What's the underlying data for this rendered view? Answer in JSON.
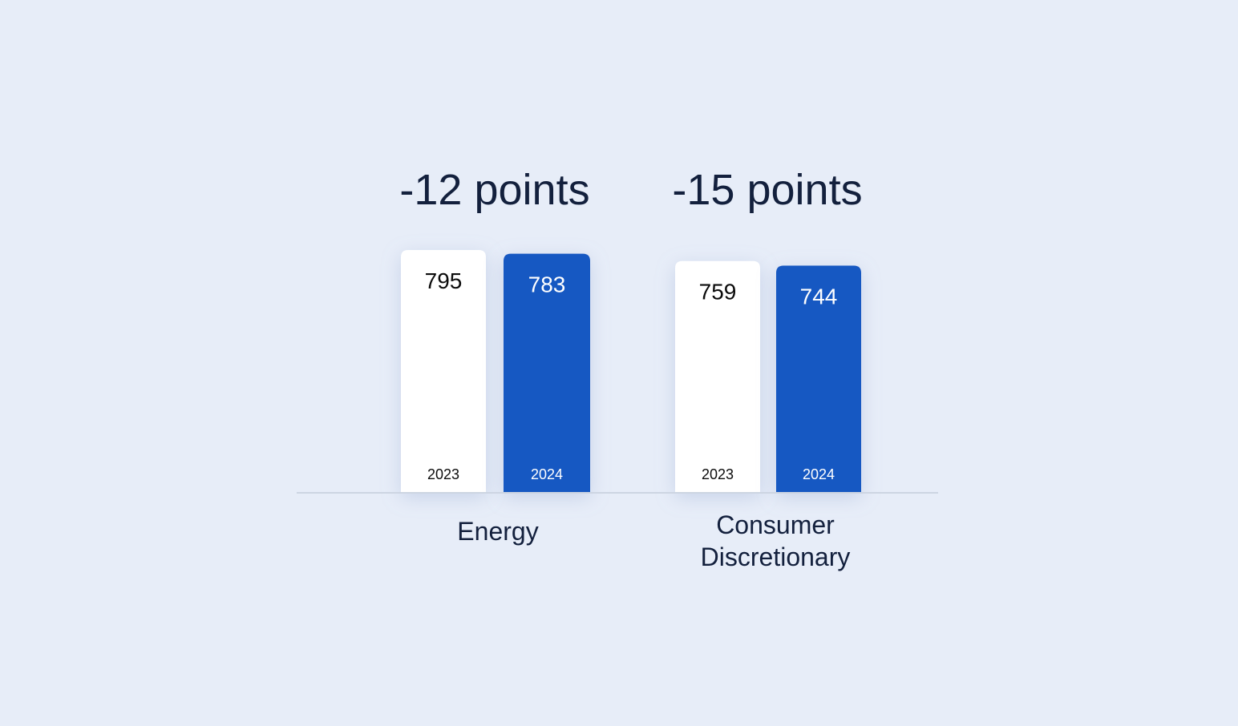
{
  "chart_data": {
    "type": "bar",
    "title": "",
    "xlabel": "",
    "ylabel": "",
    "ylim": [
      0,
      800
    ],
    "grid": false,
    "legend": "none",
    "categories": [
      {
        "label_lines": [
          "Energy"
        ],
        "delta_label": "-12 points"
      },
      {
        "label_lines": [
          "Consumer",
          "Discretionary"
        ],
        "delta_label": "-15 points"
      }
    ],
    "series": [
      {
        "name": "2023",
        "values": [
          795,
          759
        ],
        "color": "#ffffff",
        "text_color": "#0b0b0b"
      },
      {
        "name": "2024",
        "values": [
          783,
          744
        ],
        "color": "#1858c2",
        "text_color": "#ffffff"
      }
    ]
  }
}
